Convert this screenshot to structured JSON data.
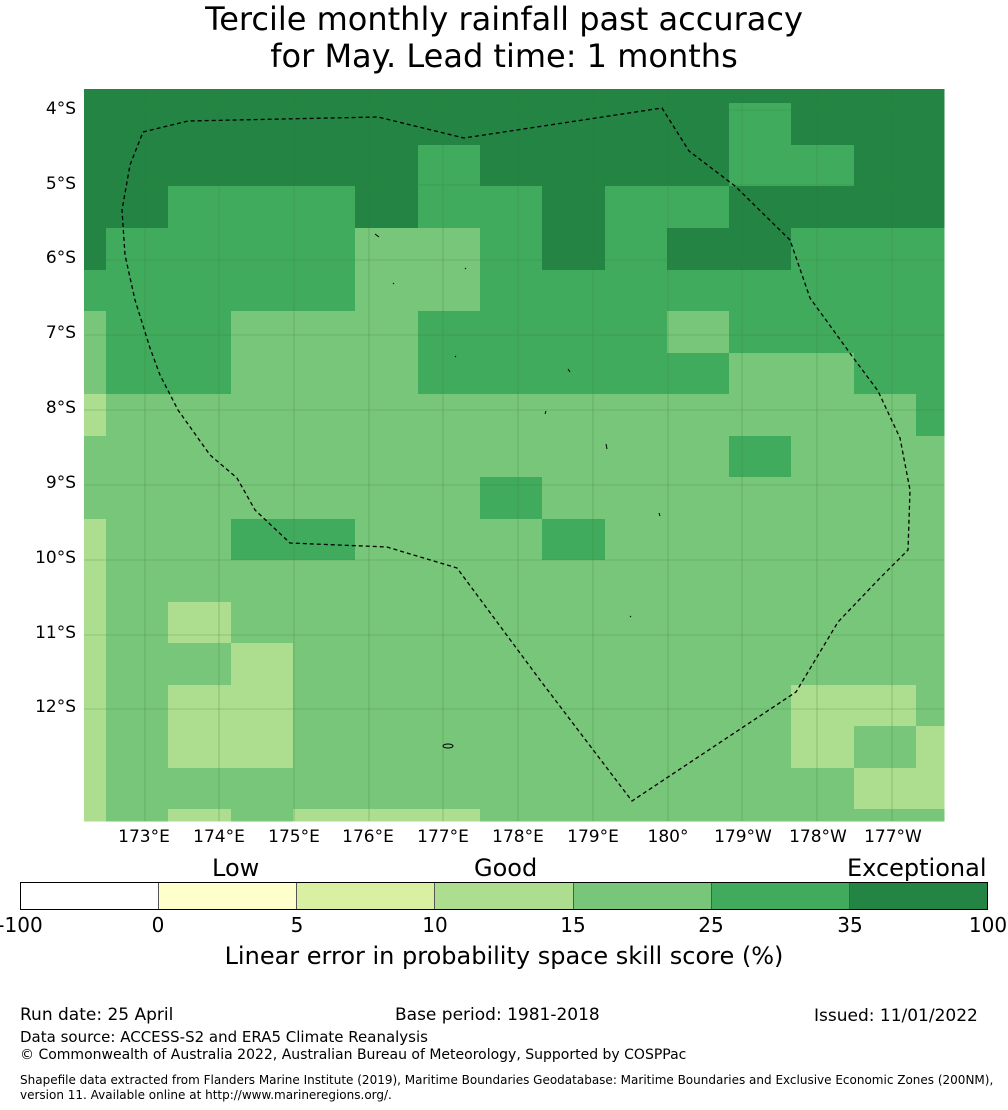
{
  "title": {
    "line1": "Tercile monthly rainfall past accuracy",
    "line2": "for May. Lead time: 1 months"
  },
  "map": {
    "lat_labels": [
      "4°S",
      "5°S",
      "6°S",
      "7°S",
      "8°S",
      "9°S",
      "10°S",
      "11°S",
      "12°S"
    ],
    "lon_labels": [
      "173°E",
      "174°E",
      "175°E",
      "176°E",
      "177°E",
      "178°E",
      "179°E",
      "180°",
      "179°W",
      "178°W",
      "177°W"
    ],
    "boundary": "dashed EEZ outline",
    "grid_rows": [
      "777777777777777777777777777777777777777777777777777777777777777777",
      "7777777777777777777777777777777777777777777766666666666777777777777777",
      "7777777777777777777777777777777777777777777766666666666777777777777777",
      "7777777777777777777777777777777777777777777766666666666777777777777777"
    ]
  },
  "colorbar": {
    "categories": [
      "Low",
      "Good",
      "Exceptional"
    ],
    "ticks": [
      "-100",
      "0",
      "5",
      "10",
      "15",
      "25",
      "35",
      "100"
    ],
    "colors": [
      "#ffffff",
      "#ffffcc",
      "#d9f0a3",
      "#addd8e",
      "#78c679",
      "#41ab5d",
      "#238443"
    ],
    "label": "Linear error in probability space skill score (%)"
  },
  "footer": {
    "run_date": "Run date: 25 April",
    "base_period": "Base period: 1981-2018",
    "issued": "Issued: 11/01/2022",
    "data_source": "Data source: ACCESS-S2 and ERA5 Climate Reanalysis",
    "copyright": "© Commonwealth of Australia 2022, Australian Bureau of Meteorology, Supported by COSPPac",
    "shapefile_line1": "Shapefile data extracted from Flanders Marine Institute (2019), Maritime Boundaries Geodatabase: Maritime Boundaries and Exclusive Economic Zones (200NM),",
    "shapefile_line2": "version 11. Available online at http://www.marineregions.org/."
  }
}
